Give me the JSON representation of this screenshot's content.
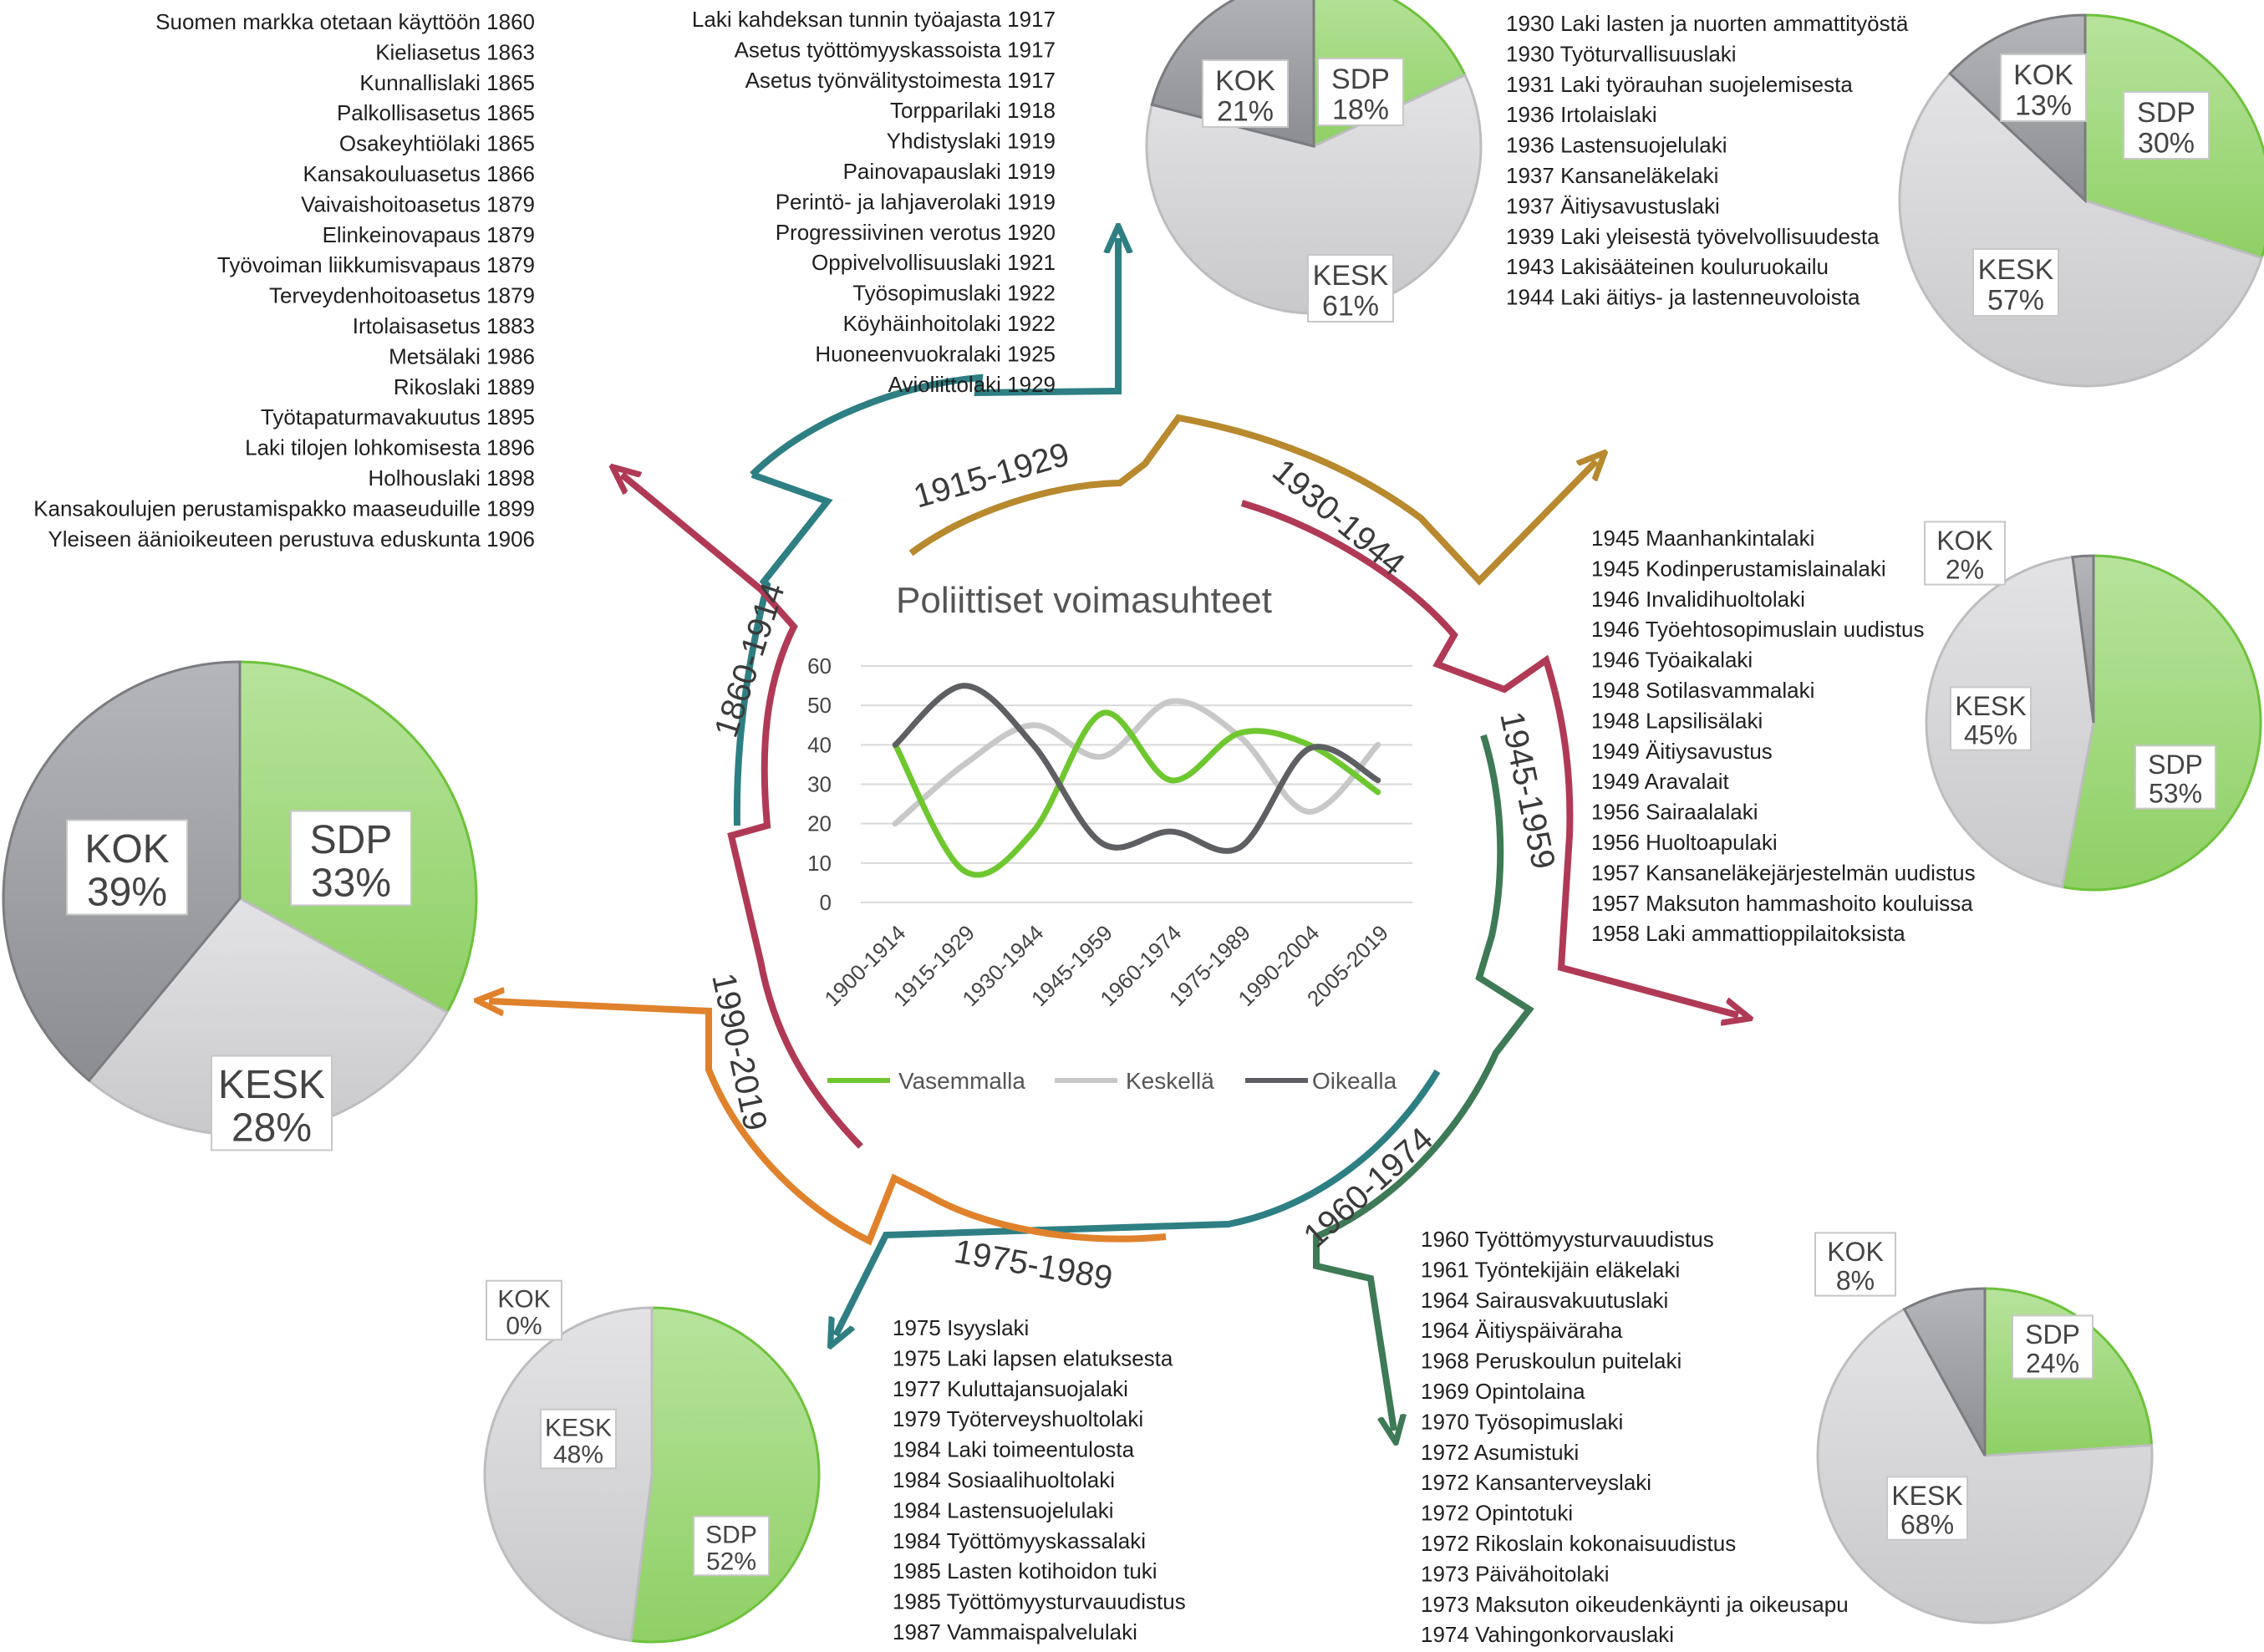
{
  "chart_data": [
    {
      "type": "line",
      "title": "Poliittiset voimasuhteet",
      "categories": [
        "1900-1914",
        "1915-1929",
        "1930-1944",
        "1945-1959",
        "1960-1974",
        "1975-1989",
        "1990-2004",
        "2005-2019"
      ],
      "ylim": [
        0,
        60
      ],
      "yticks": [
        0,
        10,
        20,
        30,
        40,
        50,
        60
      ],
      "grid": true,
      "legend": "bottom",
      "series": [
        {
          "name": "Vasemmalla",
          "color": "#6fc730",
          "values": [
            40,
            8,
            18,
            48,
            31,
            43,
            40,
            28
          ]
        },
        {
          "name": "Keskellä",
          "color": "#c8c8c8",
          "values": [
            20,
            35,
            45,
            37,
            51,
            42,
            23,
            40
          ]
        },
        {
          "name": "Oikealla",
          "color": "#5e5f63",
          "values": [
            40,
            55,
            40,
            15,
            18,
            14,
            39,
            31
          ]
        }
      ]
    },
    {
      "type": "pie",
      "period": "1900-1914",
      "slices": [
        {
          "label": "SDP",
          "value": 33
        },
        {
          "label": "KESK",
          "value": 28
        },
        {
          "label": "KOK",
          "value": 39
        }
      ]
    },
    {
      "type": "pie",
      "period": "1915-1929",
      "slices": [
        {
          "label": "SDP",
          "value": 18
        },
        {
          "label": "KESK",
          "value": 61
        },
        {
          "label": "KOK",
          "value": 21
        }
      ]
    },
    {
      "type": "pie",
      "period": "1930-1944",
      "slices": [
        {
          "label": "SDP",
          "value": 30
        },
        {
          "label": "KESK",
          "value": 57
        },
        {
          "label": "KOK",
          "value": 13
        }
      ]
    },
    {
      "type": "pie",
      "period": "1945-1959",
      "slices": [
        {
          "label": "SDP",
          "value": 53
        },
        {
          "label": "KESK",
          "value": 45
        },
        {
          "label": "KOK",
          "value": 2
        }
      ]
    },
    {
      "type": "pie",
      "period": "1960-1974",
      "slices": [
        {
          "label": "SDP",
          "value": 24
        },
        {
          "label": "KESK",
          "value": 68
        },
        {
          "label": "KOK",
          "value": 8
        }
      ]
    },
    {
      "type": "pie",
      "period": "1975-1989",
      "slices": [
        {
          "label": "SDP",
          "value": 52
        },
        {
          "label": "KESK",
          "value": 48
        },
        {
          "label": "KOK",
          "value": 0
        }
      ]
    }
  ],
  "colors": {
    "sdp": "#93d472",
    "kesk": "#cfcfd1",
    "kok": "#9a9b9e",
    "era1860": "#2e7f83",
    "era1915": "#b8892e",
    "era1930": "#b03a55",
    "era1945": "#3d7a55",
    "era1960": "#2e7f83",
    "era1975": "#e0822c",
    "era1990": "#b03a55"
  },
  "eras": [
    {
      "label": "1860-1914",
      "color": "#2e7f83"
    },
    {
      "label": "1915-1929",
      "color": "#b8892e"
    },
    {
      "label": "1930-1944",
      "color": "#b03a55"
    },
    {
      "label": "1945-1959",
      "color": "#3d7a55"
    },
    {
      "label": "1960-1974",
      "color": "#2e7f83"
    },
    {
      "label": "1975-1989",
      "color": "#2e7f83"
    },
    {
      "label": "1990-2019",
      "color": "#e0822c"
    }
  ],
  "laws": {
    "g1860": [
      "Suomen markka otetaan käyttöön 1860",
      "Kieliasetus 1863",
      "Kunnallislaki 1865",
      "Palkollisasetus 1865",
      "Osakeyhtiölaki 1865",
      "Kansakouluasetus 1866",
      "Vaivaishoitoasetus 1879",
      "Elinkeinovapaus 1879",
      "Työvoiman liikkumisvapaus 1879",
      "Terveydenhoitoasetus 1879",
      "Irtolaisasetus 1883",
      "Metsälaki 1986",
      "Rikoslaki 1889",
      "Työtapaturmavakuutus 1895",
      "Laki tilojen lohkomisesta 1896",
      "Holhouslaki 1898",
      "Kansakoulujen perustamispakko maaseuduille 1899",
      "Yleiseen äänioikeuteen perustuva eduskunta 1906"
    ],
    "g1915": [
      "Laki kahdeksan tunnin työajasta 1917",
      "Asetus työttömyyskassoista 1917",
      "Asetus työnvälitystoimesta 1917",
      "Torpparilaki 1918",
      "Yhdistyslaki 1919",
      "Painovapauslaki 1919",
      "Perintö- ja lahjaverolaki 1919",
      "Progressiivinen verotus 1920",
      "Oppivelvollisuuslaki 1921",
      "Työsopimuslaki 1922",
      "Köyhäinhoitolaki 1922",
      "Huoneenvuokralaki 1925",
      "Avioliittolaki 1929"
    ],
    "g1930": [
      "1930 Laki lasten ja nuorten ammattityöstä",
      "1930 Työturvallisuuslaki",
      "1931 Laki työrauhan suojelemisesta",
      "1936 Irtolaislaki",
      "1936 Lastensuojelulaki",
      "1937 Kansaneläkelaki",
      "1937 Äitiysavustuslaki",
      "1939 Laki yleisestä työvelvollisuudesta",
      "1943 Lakisääteinen kouluruokailu",
      "1944 Laki äitiys- ja lastenneuvoloista"
    ],
    "g1945": [
      "1945 Maanhankintalaki",
      "1945 Kodinperustamislainalaki",
      "1946 Invalidihuoltolaki",
      "1946 Työehtosopimuslain uudistus",
      "1946 Työaikalaki",
      "1948 Sotilasvammalaki",
      "1948 Lapsilisälaki",
      "1949 Äitiysavustus",
      "1949 Aravalait",
      "1956 Sairaalalaki",
      "1956 Huoltoapulaki",
      "1957 Kansaneläkejärjestelmän uudistus",
      "1957 Maksuton hammashoito kouluissa",
      "1958 Laki ammattioppilaitoksista"
    ],
    "g1960": [
      "1960 Työttömyysturvauudistus",
      "1961 Työntekijäin eläkelaki",
      "1964 Sairausvakuutuslaki",
      "1964 Äitiyspäiväraha",
      "1968 Peruskoulun puitelaki",
      "1969 Opintolaina",
      "1970 Työsopimuslaki",
      "1972 Asumistuki",
      "1972 Kansanterveyslaki",
      "1972 Opintotuki",
      "1972 Rikoslain kokonaisuudistus",
      "1973 Päivähoitolaki",
      "1973 Maksuton oikeudenkäynti ja oikeusapu",
      "1974 Vahingonkorvauslaki"
    ],
    "g1975": [
      "1975 Isyyslaki",
      "1975 Laki lapsen elatuksesta",
      "1977 Kuluttajansuojalaki",
      "1979 Työterveyshuoltolaki",
      "1984 Laki toimeentulosta",
      "1984 Sosiaalihuoltolaki",
      "1984 Lastensuojelulaki",
      "1984 Työttömyyskassalaki",
      "1985 Lasten kotihoidon tuki",
      "1985 Työttömyysturvauudistus",
      "1987 Vammaispalvelulaki"
    ]
  }
}
